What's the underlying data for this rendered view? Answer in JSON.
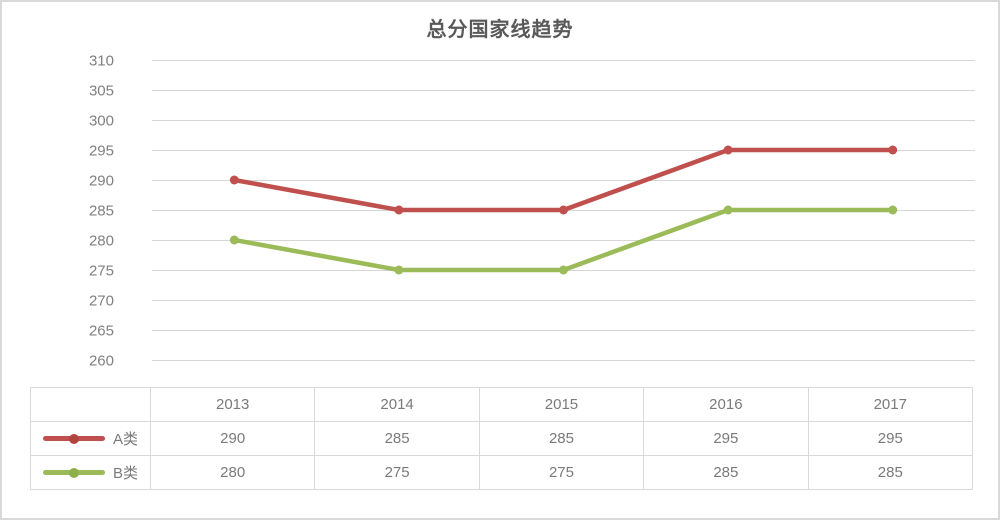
{
  "chart_data": {
    "type": "line",
    "title": "总分国家线趋势",
    "categories": [
      "2013",
      "2014",
      "2015",
      "2016",
      "2017"
    ],
    "series": [
      {
        "name": "A类",
        "values": [
          290,
          285,
          285,
          295,
          295
        ],
        "color": "#c0504d",
        "dot_color": "#b2443f"
      },
      {
        "name": "B类",
        "values": [
          280,
          275,
          275,
          285,
          285
        ],
        "color": "#9bbb59",
        "dot_color": "#8eb04a"
      }
    ],
    "ylim": [
      260,
      310
    ],
    "ytick_step": 5,
    "yticks": [
      260,
      265,
      270,
      275,
      280,
      285,
      290,
      295,
      300,
      305,
      310
    ],
    "grid": true,
    "legend_position": "table-left",
    "gridline_color": "#d6d6d6",
    "axis_label_color": "#808080",
    "table_text_color": "#7a7a7a",
    "border_color": "#d9d9d9"
  }
}
